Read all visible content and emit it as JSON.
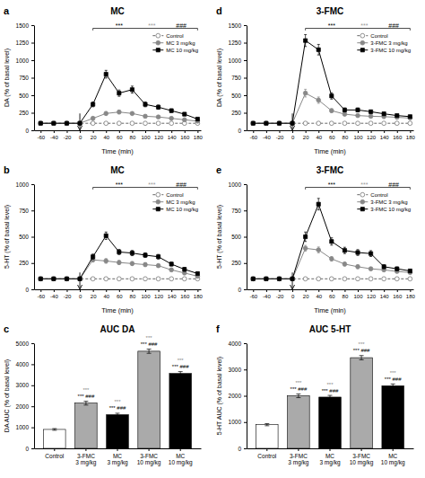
{
  "chart_data": [
    {
      "type": "line",
      "panel_label": "a",
      "title": "MC",
      "xlabel": "Time (min)",
      "ylabel": "DA (% of basal level)",
      "x": [
        -60,
        -40,
        -20,
        0,
        20,
        40,
        60,
        80,
        100,
        120,
        140,
        160,
        180
      ],
      "xlim": [
        -70,
        185
      ],
      "xticks": [
        -60,
        -40,
        -20,
        0,
        20,
        40,
        60,
        80,
        100,
        120,
        140,
        160,
        180
      ],
      "ylim": [
        0,
        1500
      ],
      "yticks": [
        0,
        250,
        500,
        750,
        1000,
        1250,
        1500
      ],
      "grid": false,
      "legend": "upper-right",
      "series": [
        {
          "name": "Control",
          "color": "#666666",
          "marker": "open-circle",
          "line_style": "dashed",
          "values": [
            100,
            100,
            100,
            100,
            100,
            100,
            100,
            100,
            100,
            100,
            100,
            100,
            100
          ],
          "errors": [
            5,
            5,
            5,
            5,
            5,
            5,
            5,
            5,
            5,
            5,
            5,
            5,
            5
          ]
        },
        {
          "name": "MC 3 mg/kg",
          "color": "#888888",
          "marker": "circle",
          "line_style": "solid",
          "values": [
            100,
            100,
            100,
            100,
            170,
            240,
            260,
            240,
            200,
            190,
            170,
            150,
            130
          ],
          "errors": [
            8,
            8,
            8,
            8,
            20,
            25,
            25,
            20,
            18,
            15,
            15,
            12,
            10
          ]
        },
        {
          "name": "MC 10 mg/kg",
          "color": "#000000",
          "marker": "square",
          "line_style": "solid",
          "values": [
            100,
            100,
            100,
            100,
            370,
            800,
            530,
            580,
            370,
            330,
            280,
            230,
            160
          ],
          "errors": [
            8,
            8,
            8,
            8,
            35,
            55,
            45,
            50,
            35,
            30,
            25,
            22,
            18
          ]
        }
      ],
      "arrow_x": 0,
      "bracket": [
        20,
        180
      ],
      "annotations": [
        {
          "text": "***",
          "x": 60,
          "color": "#000000"
        },
        {
          "text": "***",
          "x": 110,
          "color": "#999999"
        },
        {
          "text": "###",
          "x": 155,
          "color": "#000000"
        }
      ]
    },
    {
      "type": "line",
      "panel_label": "d",
      "title": "3-FMC",
      "xlabel": "Time (min)",
      "ylabel": "DA (% of basal level)",
      "x": [
        -60,
        -40,
        -20,
        0,
        20,
        40,
        60,
        80,
        100,
        120,
        140,
        160,
        180
      ],
      "xlim": [
        -70,
        185
      ],
      "xticks": [
        -60,
        -40,
        -20,
        0,
        20,
        40,
        60,
        80,
        100,
        120,
        140,
        160,
        180
      ],
      "ylim": [
        0,
        1500
      ],
      "yticks": [
        0,
        250,
        500,
        750,
        1000,
        1250,
        1500
      ],
      "grid": false,
      "legend": "upper-right",
      "series": [
        {
          "name": "Control",
          "color": "#666666",
          "marker": "open-circle",
          "line_style": "dashed",
          "values": [
            100,
            100,
            100,
            100,
            100,
            100,
            100,
            100,
            100,
            100,
            100,
            100,
            100
          ],
          "errors": [
            5,
            5,
            5,
            5,
            5,
            5,
            5,
            5,
            5,
            5,
            5,
            5,
            5
          ]
        },
        {
          "name": "3-FMC 3 mg/kg",
          "color": "#888888",
          "marker": "circle",
          "line_style": "solid",
          "values": [
            100,
            100,
            100,
            100,
            530,
            430,
            280,
            230,
            210,
            200,
            195,
            185,
            175
          ],
          "errors": [
            8,
            8,
            8,
            8,
            55,
            45,
            28,
            22,
            18,
            18,
            15,
            14,
            12
          ]
        },
        {
          "name": "3-FMC 10 mg/kg",
          "color": "#000000",
          "marker": "square",
          "line_style": "solid",
          "values": [
            100,
            100,
            100,
            100,
            1280,
            1150,
            490,
            290,
            290,
            265,
            235,
            210,
            195
          ],
          "errors": [
            8,
            8,
            8,
            8,
            85,
            75,
            45,
            28,
            28,
            22,
            22,
            18,
            18
          ]
        }
      ],
      "arrow_x": 0,
      "bracket": [
        20,
        180
      ],
      "annotations": [
        {
          "text": "***",
          "x": 60,
          "color": "#000000"
        },
        {
          "text": "***",
          "x": 110,
          "color": "#999999"
        },
        {
          "text": "###",
          "x": 155,
          "color": "#000000"
        }
      ]
    },
    {
      "type": "line",
      "panel_label": "b",
      "title": "MC",
      "xlabel": "Time (min)",
      "ylabel": "5-HT (% of basal level)",
      "x": [
        -60,
        -40,
        -20,
        0,
        20,
        40,
        60,
        80,
        100,
        120,
        140,
        160,
        180
      ],
      "xlim": [
        -70,
        185
      ],
      "xticks": [
        -60,
        -40,
        -20,
        0,
        20,
        40,
        60,
        80,
        100,
        120,
        140,
        160,
        180
      ],
      "ylim": [
        0,
        1000
      ],
      "yticks": [
        0,
        250,
        500,
        750,
        1000
      ],
      "grid": false,
      "legend": "upper-right",
      "series": [
        {
          "name": "Control",
          "color": "#666666",
          "marker": "open-circle",
          "line_style": "dashed",
          "values": [
            100,
            100,
            100,
            100,
            100,
            100,
            100,
            100,
            100,
            100,
            100,
            100,
            100
          ],
          "errors": [
            5,
            5,
            5,
            5,
            5,
            5,
            5,
            5,
            5,
            5,
            5,
            5,
            5
          ]
        },
        {
          "name": "MC 3 mg/kg",
          "color": "#888888",
          "marker": "circle",
          "line_style": "solid",
          "values": [
            100,
            100,
            100,
            100,
            280,
            270,
            255,
            245,
            235,
            225,
            185,
            155,
            125
          ],
          "errors": [
            8,
            8,
            8,
            8,
            20,
            22,
            20,
            18,
            18,
            15,
            15,
            12,
            10
          ]
        },
        {
          "name": "MC 10 mg/kg",
          "color": "#000000",
          "marker": "square",
          "line_style": "solid",
          "values": [
            100,
            100,
            100,
            100,
            310,
            510,
            355,
            345,
            325,
            310,
            240,
            190,
            150
          ],
          "errors": [
            8,
            8,
            8,
            8,
            25,
            35,
            25,
            25,
            22,
            22,
            18,
            18,
            12
          ]
        }
      ],
      "arrow_x": 0,
      "bracket": [
        20,
        180
      ],
      "annotations": [
        {
          "text": "***",
          "x": 60,
          "color": "#000000"
        },
        {
          "text": "***",
          "x": 110,
          "color": "#999999"
        },
        {
          "text": "###",
          "x": 155,
          "color": "#000000"
        }
      ]
    },
    {
      "type": "line",
      "panel_label": "e",
      "title": "3-FMC",
      "xlabel": "Time (min)",
      "ylabel": "5-HT (% of basal level)",
      "x": [
        -60,
        -40,
        -20,
        0,
        20,
        40,
        60,
        80,
        100,
        120,
        140,
        160,
        180
      ],
      "xlim": [
        -70,
        185
      ],
      "xticks": [
        -60,
        -40,
        -20,
        0,
        20,
        40,
        60,
        80,
        100,
        120,
        140,
        160,
        180
      ],
      "ylim": [
        0,
        1000
      ],
      "yticks": [
        0,
        250,
        500,
        750,
        1000
      ],
      "grid": false,
      "legend": "upper-right",
      "series": [
        {
          "name": "Control",
          "color": "#666666",
          "marker": "open-circle",
          "line_style": "dashed",
          "values": [
            100,
            100,
            100,
            100,
            100,
            100,
            100,
            100,
            100,
            100,
            100,
            100,
            100
          ],
          "errors": [
            5,
            5,
            5,
            5,
            5,
            5,
            5,
            5,
            5,
            5,
            5,
            5,
            5
          ]
        },
        {
          "name": "3-FMC 3 mg/kg",
          "color": "#888888",
          "marker": "circle",
          "line_style": "solid",
          "values": [
            100,
            100,
            100,
            100,
            390,
            375,
            290,
            240,
            215,
            195,
            185,
            170,
            160
          ],
          "errors": [
            8,
            8,
            8,
            8,
            28,
            28,
            22,
            18,
            18,
            15,
            15,
            12,
            12
          ]
        },
        {
          "name": "3-FMC 10 mg/kg",
          "color": "#000000",
          "marker": "square",
          "line_style": "solid",
          "values": [
            100,
            100,
            100,
            100,
            500,
            810,
            455,
            370,
            350,
            340,
            215,
            195,
            175
          ],
          "errors": [
            8,
            8,
            8,
            8,
            45,
            55,
            35,
            30,
            28,
            28,
            18,
            18,
            12
          ]
        }
      ],
      "arrow_x": 0,
      "bracket": [
        20,
        180
      ],
      "annotations": [
        {
          "text": "***",
          "x": 60,
          "color": "#000000"
        },
        {
          "text": "***",
          "x": 110,
          "color": "#999999"
        },
        {
          "text": "###",
          "x": 155,
          "color": "#000000"
        }
      ]
    },
    {
      "type": "bar",
      "panel_label": "c",
      "title": "AUC DA",
      "ylabel": "DA AUC (% of basal level)",
      "ylim": [
        0,
        5000
      ],
      "yticks": [
        0,
        1000,
        2000,
        3000,
        4000,
        5000
      ],
      "grid": false,
      "categories": [
        "Control",
        "3-FMC\n3 mg/kg",
        "MC\n3 mg/kg",
        "3-FMC\n10 mg/kg",
        "MC\n10 mg/kg"
      ],
      "values": [
        900,
        2150,
        1600,
        4620,
        3560
      ],
      "errors": [
        40,
        90,
        70,
        100,
        90
      ],
      "colors": [
        "white",
        "#aaaaaa",
        "black",
        "#aaaaaa",
        "black"
      ],
      "annotations": [
        {
          "text": "*** ###",
          "category": "3-FMC\n3 mg/kg",
          "color": "#000000"
        },
        {
          "text": "***",
          "category": "3-FMC\n3 mg/kg",
          "color": "#888888"
        },
        {
          "text": "*** ###",
          "category": "MC\n3 mg/kg",
          "color": "#000000"
        },
        {
          "text": "***",
          "category": "MC\n3 mg/kg",
          "color": "#888888"
        },
        {
          "text": "*** ###",
          "category": "3-FMC\n10 mg/kg",
          "color": "#000000"
        },
        {
          "text": "***",
          "category": "3-FMC\n10 mg/kg",
          "color": "#888888"
        },
        {
          "text": "*** ###",
          "category": "MC\n10 mg/kg",
          "color": "#000000"
        },
        {
          "text": "***",
          "category": "MC\n10 mg/kg",
          "color": "#888888"
        }
      ]
    },
    {
      "type": "bar",
      "panel_label": "f",
      "title": "AUC 5-HT",
      "ylabel": "5-HT AUC (% of basal level)",
      "ylim": [
        0,
        4000
      ],
      "yticks": [
        0,
        1000,
        2000,
        3000,
        4000
      ],
      "grid": false,
      "categories": [
        "Control",
        "3-FMC\n3 mg/kg",
        "MC\n3 mg/kg",
        "3-FMC\n10 mg/kg",
        "MC\n10 mg/kg"
      ],
      "values": [
        900,
        2000,
        1950,
        3450,
        2380
      ],
      "errors": [
        40,
        70,
        65,
        80,
        70
      ],
      "colors": [
        "white",
        "#aaaaaa",
        "black",
        "#aaaaaa",
        "black"
      ],
      "annotations": [
        {
          "text": "*** ###",
          "category": "3-FMC\n3 mg/kg",
          "color": "#000000"
        },
        {
          "text": "***",
          "category": "3-FMC\n3 mg/kg",
          "color": "#888888"
        },
        {
          "text": "*** ###",
          "category": "MC\n3 mg/kg",
          "color": "#000000"
        },
        {
          "text": "***",
          "category": "MC\n3 mg/kg",
          "color": "#888888"
        },
        {
          "text": "*** ###",
          "category": "3-FMC\n10 mg/kg",
          "color": "#000000"
        },
        {
          "text": "***",
          "category": "3-FMC\n10 mg/kg",
          "color": "#888888"
        },
        {
          "text": "*** ###",
          "category": "MC\n10 mg/kg",
          "color": "#000000"
        },
        {
          "text": "***",
          "category": "MC\n10 mg/kg",
          "color": "#888888"
        }
      ]
    }
  ]
}
